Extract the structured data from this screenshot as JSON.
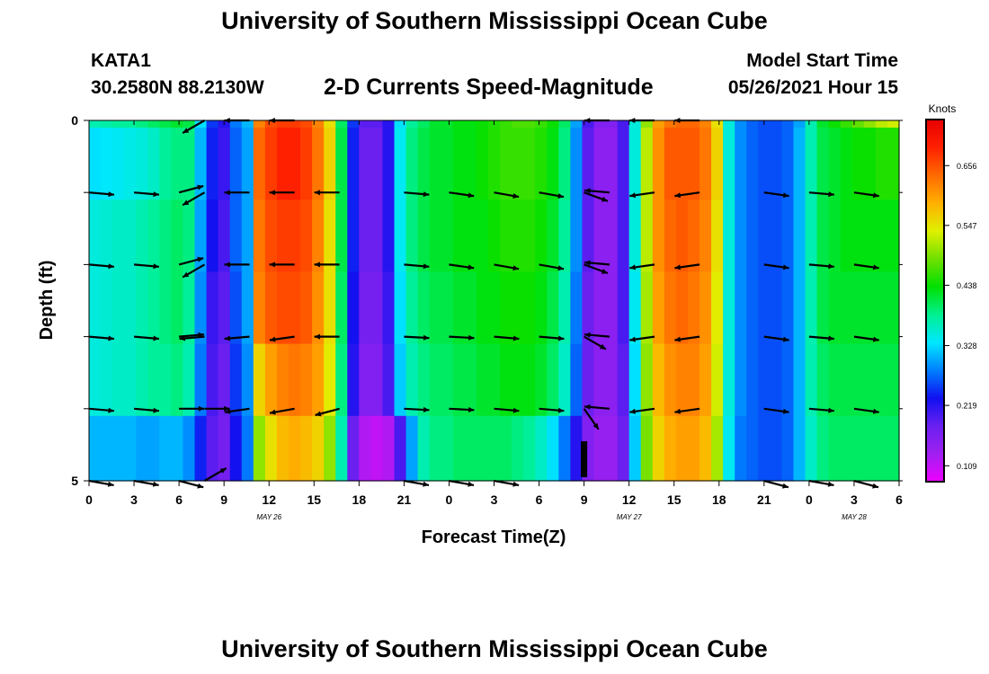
{
  "page": {
    "title_top": "University of Southern Mississippi Ocean Cube",
    "title_bottom": "University of Southern Mississippi Ocean Cube",
    "station_id": "KATA1",
    "station_coords": "30.2580N  88.2130W",
    "chart_title": "2-D Currents Speed-Magnitude",
    "model_start_label": "Model Start Time",
    "model_start_value": "05/26/2021 Hour 15"
  },
  "colors": {
    "stops": [
      "#ee00ff",
      "#a020f0",
      "#6a20f0",
      "#1010f0",
      "#0080ff",
      "#00e8ff",
      "#00f090",
      "#00e000",
      "#70e000",
      "#e0f000",
      "#ffb000",
      "#ff6a00",
      "#ff2000",
      "#e80000"
    ],
    "arrow": "#000000"
  },
  "chart_data": {
    "type": "heatmap",
    "title": "2-D Currents Speed-Magnitude",
    "xlabel": "Forecast Time(Z)",
    "ylabel": "Depth (ft)",
    "x_hours": [
      0,
      54
    ],
    "ylim": [
      0,
      5
    ],
    "x_ticks": [
      "0",
      "3",
      "6",
      "9",
      "12",
      "15",
      "18",
      "21",
      "0",
      "3",
      "6",
      "9",
      "12",
      "15",
      "18",
      "21",
      "0",
      "3",
      "6"
    ],
    "y_ticks": [
      "0",
      "5"
    ],
    "date_labels": [
      {
        "text": "MAY 26",
        "hour": 12
      },
      {
        "text": "MAY 27",
        "hour": 36
      },
      {
        "text": "MAY 28",
        "hour": 51
      }
    ],
    "colorbar": {
      "label": "Knots",
      "range": [
        0.08,
        0.74
      ],
      "ticks": [
        "0.109",
        "0.219",
        "0.328",
        "0.438",
        "0.547",
        "0.656"
      ],
      "tick_values": [
        0.109,
        0.219,
        0.328,
        0.438,
        0.547,
        0.656
      ]
    },
    "depths": [
      0,
      0.5,
      1.5,
      2.5,
      3.5,
      4.5
    ],
    "speed": [
      [
        0.37,
        0.375,
        0.38,
        0.38,
        0.39,
        0.4,
        0.41,
        0.42,
        0.41,
        0.33,
        0.25,
        0.22,
        0.28,
        0.31,
        0.62,
        0.66,
        0.67,
        0.67,
        0.66,
        0.62,
        0.55,
        0.4,
        0.25,
        0.19,
        0.19,
        0.22,
        0.33,
        0.38,
        0.4,
        0.42,
        0.42,
        0.43,
        0.43,
        0.44,
        0.45,
        0.46,
        0.47,
        0.47,
        0.46,
        0.44,
        0.4,
        0.3,
        0.2,
        0.16,
        0.16,
        0.2,
        0.35,
        0.5,
        0.6,
        0.63,
        0.64,
        0.64,
        0.62,
        0.55,
        0.35,
        0.29,
        0.27,
        0.26,
        0.26,
        0.27,
        0.3,
        0.37,
        0.42,
        0.44,
        0.46,
        0.48,
        0.5,
        0.52,
        0.53
      ],
      [
        0.33,
        0.335,
        0.34,
        0.345,
        0.35,
        0.36,
        0.38,
        0.39,
        0.39,
        0.31,
        0.24,
        0.21,
        0.27,
        0.3,
        0.64,
        0.67,
        0.69,
        0.69,
        0.67,
        0.63,
        0.56,
        0.41,
        0.24,
        0.18,
        0.18,
        0.22,
        0.34,
        0.39,
        0.41,
        0.42,
        0.42,
        0.43,
        0.43,
        0.44,
        0.45,
        0.46,
        0.46,
        0.46,
        0.45,
        0.43,
        0.39,
        0.29,
        0.19,
        0.15,
        0.15,
        0.2,
        0.35,
        0.52,
        0.61,
        0.65,
        0.65,
        0.65,
        0.63,
        0.56,
        0.35,
        0.29,
        0.27,
        0.26,
        0.26,
        0.27,
        0.31,
        0.37,
        0.41,
        0.42,
        0.43,
        0.44,
        0.44,
        0.45,
        0.45
      ],
      [
        0.35,
        0.355,
        0.36,
        0.36,
        0.37,
        0.38,
        0.39,
        0.4,
        0.39,
        0.3,
        0.23,
        0.2,
        0.27,
        0.3,
        0.63,
        0.66,
        0.67,
        0.67,
        0.66,
        0.62,
        0.55,
        0.41,
        0.24,
        0.18,
        0.18,
        0.22,
        0.34,
        0.39,
        0.41,
        0.42,
        0.42,
        0.43,
        0.43,
        0.43,
        0.44,
        0.45,
        0.45,
        0.45,
        0.44,
        0.42,
        0.38,
        0.29,
        0.19,
        0.15,
        0.15,
        0.2,
        0.35,
        0.52,
        0.61,
        0.64,
        0.65,
        0.64,
        0.62,
        0.55,
        0.35,
        0.29,
        0.27,
        0.26,
        0.26,
        0.27,
        0.31,
        0.37,
        0.41,
        0.42,
        0.43,
        0.43,
        0.43,
        0.43,
        0.43
      ],
      [
        0.35,
        0.355,
        0.36,
        0.36,
        0.37,
        0.38,
        0.39,
        0.4,
        0.38,
        0.29,
        0.21,
        0.19,
        0.26,
        0.3,
        0.62,
        0.65,
        0.66,
        0.66,
        0.65,
        0.61,
        0.55,
        0.4,
        0.23,
        0.17,
        0.17,
        0.21,
        0.33,
        0.38,
        0.4,
        0.41,
        0.41,
        0.42,
        0.42,
        0.43,
        0.43,
        0.44,
        0.44,
        0.44,
        0.43,
        0.41,
        0.37,
        0.28,
        0.18,
        0.15,
        0.15,
        0.2,
        0.34,
        0.51,
        0.6,
        0.63,
        0.64,
        0.63,
        0.61,
        0.54,
        0.35,
        0.29,
        0.27,
        0.26,
        0.26,
        0.27,
        0.31,
        0.37,
        0.41,
        0.42,
        0.42,
        0.42,
        0.42,
        0.42,
        0.42
      ],
      [
        0.35,
        0.355,
        0.36,
        0.36,
        0.37,
        0.38,
        0.38,
        0.39,
        0.37,
        0.28,
        0.2,
        0.18,
        0.25,
        0.29,
        0.56,
        0.6,
        0.62,
        0.63,
        0.62,
        0.6,
        0.54,
        0.39,
        0.22,
        0.16,
        0.16,
        0.2,
        0.32,
        0.37,
        0.39,
        0.4,
        0.4,
        0.41,
        0.41,
        0.42,
        0.42,
        0.43,
        0.43,
        0.43,
        0.42,
        0.4,
        0.36,
        0.27,
        0.18,
        0.15,
        0.15,
        0.19,
        0.33,
        0.5,
        0.58,
        0.61,
        0.62,
        0.62,
        0.6,
        0.53,
        0.35,
        0.29,
        0.27,
        0.26,
        0.26,
        0.27,
        0.31,
        0.37,
        0.4,
        0.41,
        0.41,
        0.41,
        0.41,
        0.41,
        0.41
      ],
      [
        0.31,
        0.31,
        0.31,
        0.31,
        0.3,
        0.3,
        0.31,
        0.31,
        0.29,
        0.24,
        0.19,
        0.17,
        0.23,
        0.28,
        0.5,
        0.55,
        0.58,
        0.59,
        0.58,
        0.56,
        0.5,
        0.37,
        0.18,
        0.12,
        0.11,
        0.12,
        0.2,
        0.3,
        0.37,
        0.39,
        0.39,
        0.4,
        0.4,
        0.4,
        0.4,
        0.4,
        0.39,
        0.38,
        0.36,
        0.33,
        0.28,
        0.22,
        0.16,
        0.14,
        0.14,
        0.18,
        0.32,
        0.49,
        0.56,
        0.59,
        0.6,
        0.6,
        0.58,
        0.51,
        0.34,
        0.28,
        0.27,
        0.26,
        0.26,
        0.27,
        0.31,
        0.36,
        0.39,
        0.4,
        0.4,
        0.4,
        0.4,
        0.4,
        0.4
      ]
    ],
    "vector_rows": [
      {
        "depth": 0.0,
        "vectors": [
          {
            "hour": 7.7,
            "dir": -150
          },
          {
            "hour": 10.7,
            "dir": 180
          },
          {
            "hour": 13.7,
            "dir": 180
          },
          {
            "hour": 34.7,
            "dir": 180
          },
          {
            "hour": 37.7,
            "dir": 180
          },
          {
            "hour": 40.7,
            "dir": 180
          }
        ]
      },
      {
        "depth": 1.0,
        "vectors": [
          {
            "hour": 0,
            "dir": -5
          },
          {
            "hour": 3,
            "dir": -5
          },
          {
            "hour": 6,
            "dir": 15
          },
          {
            "hour": 7.7,
            "dir": -150
          },
          {
            "hour": 10.7,
            "dir": 180
          },
          {
            "hour": 13.7,
            "dir": 180
          },
          {
            "hour": 16.7,
            "dir": 180
          },
          {
            "hour": 21,
            "dir": -5
          },
          {
            "hour": 24,
            "dir": -8
          },
          {
            "hour": 27,
            "dir": -10
          },
          {
            "hour": 30,
            "dir": -10
          },
          {
            "hour": 33,
            "dir": -20
          },
          {
            "hour": 34.7,
            "dir": 175
          },
          {
            "hour": 37.7,
            "dir": 188
          },
          {
            "hour": 40.7,
            "dir": 188
          },
          {
            "hour": 45,
            "dir": -8
          },
          {
            "hour": 48,
            "dir": -5
          },
          {
            "hour": 51,
            "dir": -8
          }
        ]
      },
      {
        "depth": 2.0,
        "vectors": [
          {
            "hour": 0,
            "dir": -5
          },
          {
            "hour": 3,
            "dir": -5
          },
          {
            "hour": 6,
            "dir": 15
          },
          {
            "hour": 7.7,
            "dir": -150
          },
          {
            "hour": 10.7,
            "dir": 180
          },
          {
            "hour": 13.7,
            "dir": 180
          },
          {
            "hour": 16.7,
            "dir": 180
          },
          {
            "hour": 21,
            "dir": -5
          },
          {
            "hour": 24,
            "dir": -8
          },
          {
            "hour": 27,
            "dir": -10
          },
          {
            "hour": 30,
            "dir": -10
          },
          {
            "hour": 33,
            "dir": -20
          },
          {
            "hour": 34.7,
            "dir": 175
          },
          {
            "hour": 37.7,
            "dir": 188
          },
          {
            "hour": 40.7,
            "dir": 188
          },
          {
            "hour": 45,
            "dir": -8
          },
          {
            "hour": 48,
            "dir": -5
          },
          {
            "hour": 51,
            "dir": -8
          }
        ]
      },
      {
        "depth": 3.0,
        "vectors": [
          {
            "hour": 0,
            "dir": -5
          },
          {
            "hour": 3,
            "dir": -5
          },
          {
            "hour": 6,
            "dir": 5
          },
          {
            "hour": 7.7,
            "dir": 185
          },
          {
            "hour": 10.7,
            "dir": 185
          },
          {
            "hour": 13.7,
            "dir": 188
          },
          {
            "hour": 16.7,
            "dir": 180
          },
          {
            "hour": 21,
            "dir": -3
          },
          {
            "hour": 24,
            "dir": -3
          },
          {
            "hour": 27,
            "dir": -5
          },
          {
            "hour": 30,
            "dir": -5
          },
          {
            "hour": 33,
            "dir": -30
          },
          {
            "hour": 34.7,
            "dir": 175
          },
          {
            "hour": 37.7,
            "dir": 188
          },
          {
            "hour": 40.7,
            "dir": 188
          },
          {
            "hour": 45,
            "dir": -8
          },
          {
            "hour": 48,
            "dir": -5
          },
          {
            "hour": 51,
            "dir": -8
          }
        ]
      },
      {
        "depth": 4.0,
        "vectors": [
          {
            "hour": 0,
            "dir": -5
          },
          {
            "hour": 3,
            "dir": -5
          },
          {
            "hour": 6,
            "dir": 0
          },
          {
            "hour": 7.7,
            "dir": 0
          },
          {
            "hour": 10.7,
            "dir": 188
          },
          {
            "hour": 13.7,
            "dir": 190
          },
          {
            "hour": 16.7,
            "dir": 195
          },
          {
            "hour": 21,
            "dir": -3
          },
          {
            "hour": 24,
            "dir": -3
          },
          {
            "hour": 27,
            "dir": -5
          },
          {
            "hour": 30,
            "dir": -5
          },
          {
            "hour": 33,
            "dir": -55
          },
          {
            "hour": 34.7,
            "dir": 175
          },
          {
            "hour": 37.7,
            "dir": 188
          },
          {
            "hour": 40.7,
            "dir": 188
          },
          {
            "hour": 45,
            "dir": -8
          },
          {
            "hour": 48,
            "dir": -5
          },
          {
            "hour": 51,
            "dir": -8
          }
        ]
      },
      {
        "depth": 5.0,
        "vectors": [
          {
            "hour": 0,
            "dir": -10
          },
          {
            "hour": 3,
            "dir": -10
          },
          {
            "hour": 6,
            "dir": -15
          },
          {
            "hour": 7.7,
            "dir": 30
          },
          {
            "hour": 21,
            "dir": -10
          },
          {
            "hour": 24,
            "dir": -10
          },
          {
            "hour": 27,
            "dir": -10
          },
          {
            "hour": 45,
            "dir": -15
          },
          {
            "hour": 48,
            "dir": -10
          },
          {
            "hour": 51,
            "dir": -15
          }
        ]
      }
    ],
    "special_vectors": [
      {
        "hour": 33,
        "depth": 4.95,
        "dir": -90,
        "length": 38,
        "bar": true
      }
    ]
  }
}
